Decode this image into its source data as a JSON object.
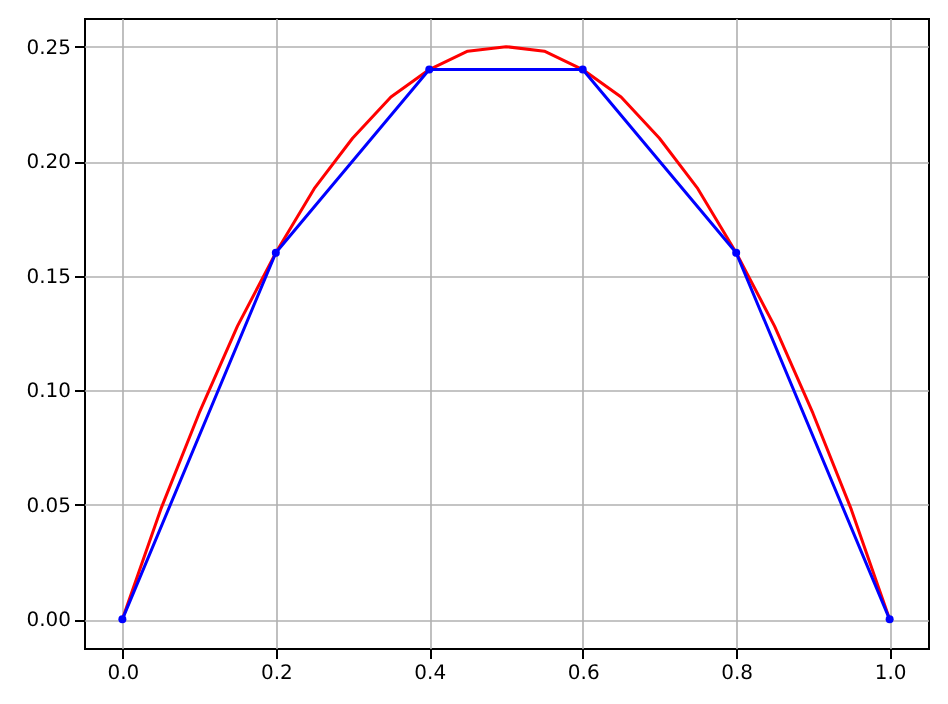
{
  "chart_data": {
    "type": "line",
    "xlim": [
      -0.05,
      1.05
    ],
    "ylim": [
      -0.0125,
      0.2625
    ],
    "xticks": [
      {
        "value": 0,
        "label": "0.0"
      },
      {
        "value": 0.2,
        "label": "0.2"
      },
      {
        "value": 0.4,
        "label": "0.4"
      },
      {
        "value": 0.6,
        "label": "0.6"
      },
      {
        "value": 0.8,
        "label": "0.8"
      },
      {
        "value": 1,
        "label": "1.0"
      }
    ],
    "yticks": [
      {
        "value": 0,
        "label": "0.00"
      },
      {
        "value": 0.05,
        "label": "0.05"
      },
      {
        "value": 0.1,
        "label": "0.10"
      },
      {
        "value": 0.15,
        "label": "0.15"
      },
      {
        "value": 0.2,
        "label": "0.20"
      },
      {
        "value": 0.25,
        "label": "0.25"
      }
    ],
    "grid": true,
    "marker": "circle",
    "line_style": "solid",
    "series": [
      {
        "color": "#ff0000",
        "marker": "none",
        "x": [
          0,
          0.05,
          0.1,
          0.15,
          0.2,
          0.25,
          0.3,
          0.35,
          0.4,
          0.45,
          0.5,
          0.55,
          0.6,
          0.65,
          0.7,
          0.75,
          0.8,
          0.85,
          0.9,
          0.95,
          1
        ],
        "values": [
          0,
          0.048,
          0.09,
          0.128,
          0.16,
          0.188,
          0.21,
          0.228,
          0.24,
          0.248,
          0.25,
          0.248,
          0.24,
          0.228,
          0.21,
          0.188,
          0.16,
          0.128,
          0.09,
          0.048,
          0
        ]
      },
      {
        "color": "#0000ff",
        "x": [
          0,
          0.2,
          0.4,
          0.6,
          0.8,
          1
        ],
        "values": [
          0,
          0.16,
          0.24,
          0.24,
          0.16,
          0
        ]
      }
    ]
  }
}
